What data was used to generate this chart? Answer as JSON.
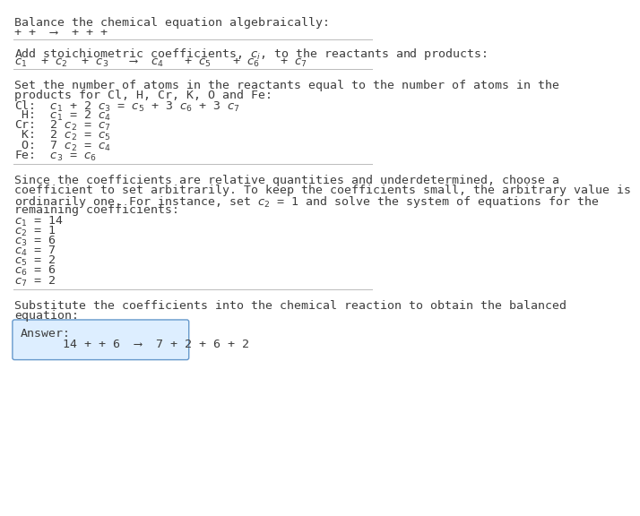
{
  "bg_color": "#ffffff",
  "text_color": "#3d3d3d",
  "section1_title": "Balance the chemical equation algebraically:",
  "section1_line": "+ +  ⟶  + + +",
  "section2_title": "Add stoichiometric coefficients, $c_i$, to the reactants and products:",
  "section2_line": "$c_1$  + $c_2$  + $c_3$   ⟶  $c_4$   + $c_5$   + $c_6$   + $c_7$",
  "section3_title_l1": "Set the number of atoms in the reactants equal to the number of atoms in the",
  "section3_title_l2": "products for Cl, H, Cr, K, O and Fe:",
  "section3_equations": [
    "Cl:  $c_1$ + 2 $c_3$ = $c_5$ + 3 $c_6$ + 3 $c_7$",
    " H:  $c_1$ = 2 $c_4$",
    "Cr:  2 $c_2$ = $c_7$",
    " K:  2 $c_2$ = $c_5$",
    " O:  7 $c_2$ = $c_4$",
    "Fe:  $c_3$ = $c_6$"
  ],
  "section4_l1": "Since the coefficients are relative quantities and underdetermined, choose a",
  "section4_l2": "coefficient to set arbitrarily. To keep the coefficients small, the arbitrary value is",
  "section4_l3": "ordinarily one. For instance, set $c_2$ = 1 and solve the system of equations for the",
  "section4_l4": "remaining coefficients:",
  "section4_coeffs": [
    "$c_1$ = 14",
    "$c_2$ = 1",
    "$c_3$ = 6",
    "$c_4$ = 7",
    "$c_5$ = 2",
    "$c_6$ = 6",
    "$c_7$ = 2"
  ],
  "section5_l1": "Substitute the coefficients into the chemical reaction to obtain the balanced",
  "section5_l2": "equation:",
  "answer_label": "Answer:",
  "answer_line": "      14 + + 6  ⟶  7 + 2 + 6 + 2",
  "answer_box_color": "#ddeeff",
  "answer_box_border": "#6699cc",
  "divider_color": "#bbbbbb",
  "fs": 9.5,
  "fs_eq": 9.5
}
